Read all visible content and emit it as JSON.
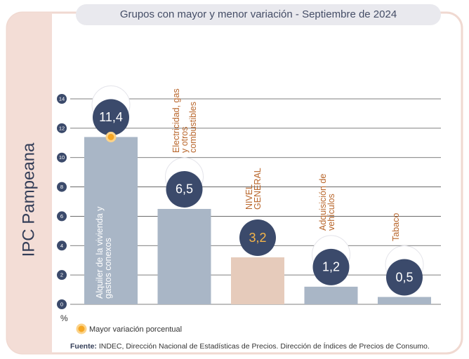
{
  "chart_data": {
    "type": "bar",
    "panel_label": "IPC Pampeana",
    "title": "Grupos con mayor y menor variación - Septiembre de 2024",
    "categories": [
      "Alquiler de la vivienda y gastos conexos",
      "Electricidad, gas y otros combustibles",
      "NIVEL GENERAL",
      "Adquisición de vehículos",
      "Tabaco"
    ],
    "values": [
      11.4,
      6.5,
      3.2,
      1.2,
      0.5
    ],
    "value_labels": [
      "11,4",
      "6,5",
      "3,2",
      "1,2",
      "0,5"
    ],
    "colors": [
      "#a9b6c6",
      "#a9b6c6",
      "#e6cbbb",
      "#a9b6c6",
      "#a9b6c6"
    ],
    "y_unit": "%",
    "ylim": [
      0,
      14
    ],
    "yticks": [
      0,
      2,
      4,
      6,
      8,
      10,
      12,
      14
    ],
    "grid": true,
    "legend": "Mayor variación porcentual",
    "source_label": "Fuente:",
    "source": "INDEC, Dirección Nacional de Estadísticas de Precios. Dirección de Índices de Precios de Consumo."
  }
}
